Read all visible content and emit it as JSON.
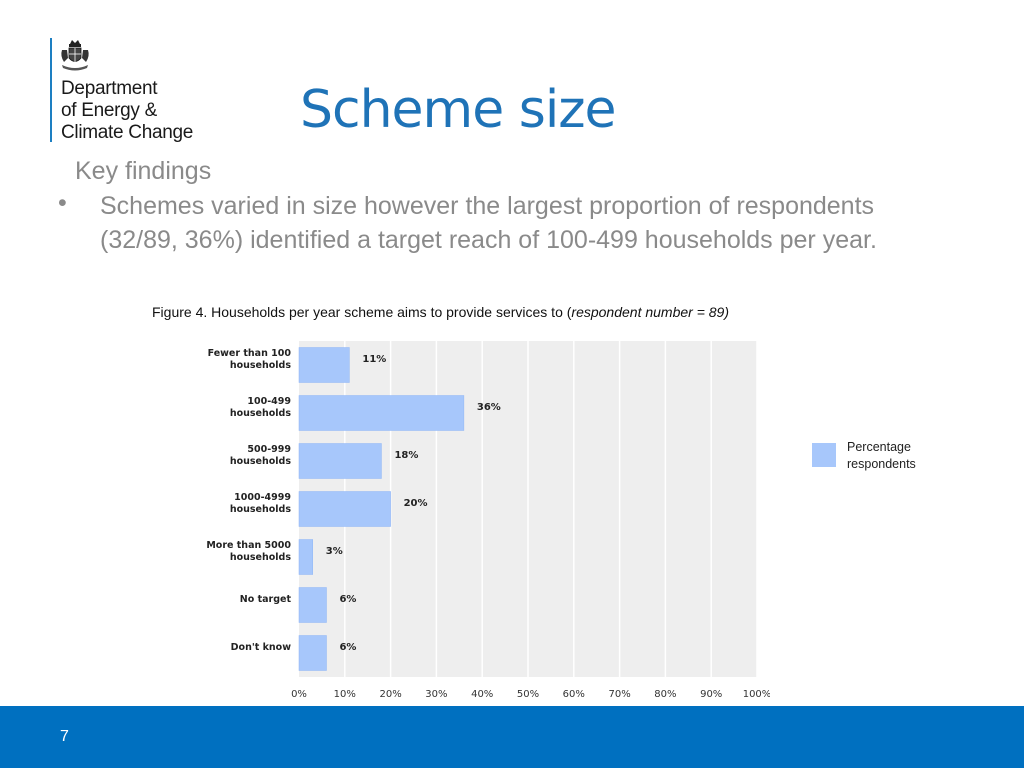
{
  "logo": {
    "lines": [
      "Department",
      "of Energy &",
      "Climate Change"
    ],
    "crest_icon": "royal-crest-icon"
  },
  "title": "Scheme size",
  "key_findings": {
    "heading": "Key findings",
    "bullet_symbol": "•",
    "bullets": [
      "Schemes varied in size however the largest proportion of respondents (32/89, 36%) identified a target reach of 100-499 households per year."
    ]
  },
  "figure_caption": {
    "prefix": "Figure 4. Households per year scheme aims to provide services to (",
    "italic": "respondent number = 89)"
  },
  "chart_data": {
    "type": "bar",
    "orientation": "horizontal",
    "categories": [
      [
        "Fewer than 100",
        "households"
      ],
      [
        "100-499",
        "households"
      ],
      [
        "500-999",
        "households"
      ],
      [
        "1000-4999",
        "households"
      ],
      [
        "More than 5000",
        "households"
      ],
      [
        "No target"
      ],
      [
        "Don't know"
      ]
    ],
    "values": [
      11,
      36,
      18,
      20,
      3,
      6,
      6
    ],
    "value_labels": [
      "11%",
      "36%",
      "18%",
      "20%",
      "3%",
      "6%",
      "6%"
    ],
    "xlim": [
      0,
      100
    ],
    "xticks": [
      "0%",
      "10%",
      "20%",
      "30%",
      "40%",
      "50%",
      "60%",
      "70%",
      "80%",
      "90%",
      "100%"
    ],
    "grid": true,
    "legend": {
      "label": "Percentage respondents",
      "position": "right"
    },
    "colors": {
      "bar": "#a7c7fb",
      "bar_edge": "#8fb6f5",
      "plot_bg": "#eeeeee",
      "grid": "#ffffff"
    }
  },
  "colors": {
    "title": "#1f73b7",
    "footer": "#0070c0",
    "logo_bar": "#1d7fc2",
    "body_text": "#8a8a8a"
  },
  "footer": {
    "page_number": "7"
  }
}
